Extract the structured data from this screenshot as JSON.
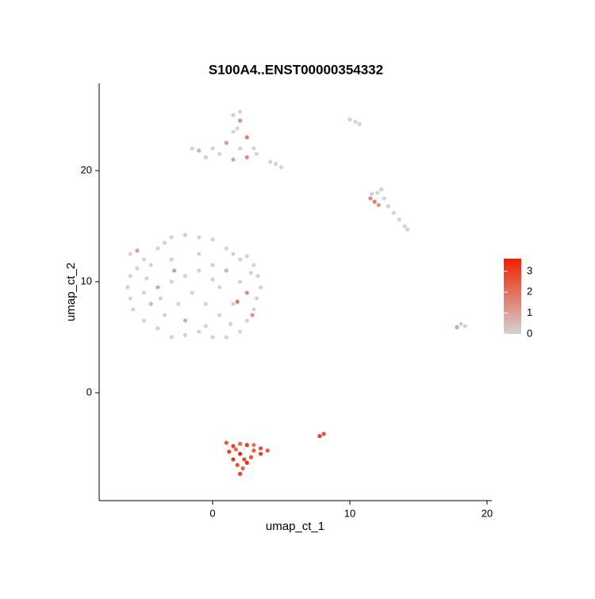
{
  "chart_data": {
    "type": "scatter",
    "title": "S100A4..ENST00000354332",
    "x_label": "umap_ct_1",
    "y_label": "umap_ct_2",
    "xlim": [
      -8.27,
      20.35
    ],
    "ylim": [
      -9.71,
      27.86
    ],
    "xticks": [
      0,
      10,
      20
    ],
    "yticks": [
      0,
      10,
      20
    ],
    "color_low": "#d3d3d3",
    "color_high": "#ee2200",
    "colorbar_lim": [
      0,
      3.6
    ],
    "colorbar_ticks": [
      0,
      1,
      2,
      3
    ],
    "x": [
      -6,
      -5.5,
      -5,
      -4.5,
      -4,
      -3.5,
      -3,
      -2,
      -1,
      0,
      1,
      1.5,
      2,
      2.5,
      3,
      3.3,
      3.5,
      3.2,
      3,
      2.5,
      2,
      1,
      0,
      -1,
      -2,
      -3,
      -4,
      -5,
      -5.8,
      -6,
      -6.2,
      -6,
      -5.5,
      -5,
      -4,
      -3,
      -2,
      -1,
      0,
      1,
      2,
      2.5,
      1.5,
      0.5,
      -0.5,
      -1.5,
      -2.5,
      -3.5,
      -4.5,
      -3,
      -1,
      0.5,
      -2,
      1.8,
      -0.5,
      2.8,
      -4.8,
      -3.8,
      0,
      1.3,
      -2.8,
      2.9,
      -1.5,
      -1,
      0,
      1,
      1.5,
      2,
      1.5,
      2,
      2.5,
      3,
      2.5,
      1.5,
      0.5,
      2,
      3.2,
      1.8,
      -0.5,
      4.2,
      4.6,
      5,
      10,
      10.4,
      10.7,
      11.5,
      11.8,
      12,
      12.3,
      12.5,
      12.8,
      13.2,
      13.6,
      14,
      14.2,
      11.6,
      12.1,
      17.8,
      18.1,
      18.4,
      1,
      1.5,
      2,
      2.5,
      3,
      3.5,
      4,
      3.5,
      2.8,
      2.5,
      2.2,
      2,
      1.8,
      1.5,
      1.2,
      2,
      3,
      1.7,
      2.3,
      7.8,
      8.1
    ],
    "y": [
      12.5,
      12.8,
      12,
      11.5,
      13,
      13.5,
      14,
      14.2,
      14,
      13.8,
      13,
      12.5,
      12,
      12.3,
      11.5,
      10.5,
      9.5,
      8.5,
      7.5,
      6.5,
      5.5,
      5,
      5,
      5.5,
      5.2,
      5,
      5.8,
      6.5,
      7.5,
      8.5,
      9.5,
      10.5,
      11.2,
      9,
      9.5,
      10,
      10.5,
      11,
      11.5,
      11,
      10,
      9,
      8,
      7,
      8,
      9,
      8,
      7,
      8,
      12,
      12.5,
      9.5,
      6.5,
      8.2,
      6,
      10.8,
      10.3,
      8.5,
      10.2,
      6.2,
      11,
      7,
      22,
      21.8,
      22,
      22.5,
      23.5,
      24.5,
      25,
      25.3,
      23,
      22,
      21.2,
      21,
      21.5,
      22,
      21.5,
      23.8,
      21.2,
      20.8,
      20.6,
      20.3,
      24.6,
      24.4,
      24.2,
      17.5,
      17.2,
      18,
      18.3,
      17.5,
      16.8,
      16.2,
      15.6,
      15,
      14.7,
      17.9,
      16.9,
      5.9,
      6.2,
      6,
      -4.5,
      -4.8,
      -4.6,
      -4.7,
      -4.7,
      -5,
      -5.2,
      -5.5,
      -5.8,
      -6.3,
      -6.8,
      -7.3,
      -6.5,
      -6,
      -5.3,
      -5.5,
      -5.2,
      -5.1,
      -6,
      -3.9,
      -3.7
    ],
    "values": [
      0,
      1.2,
      0,
      0,
      0,
      0,
      0,
      0,
      0,
      0,
      0,
      0,
      0,
      0,
      0,
      0,
      0,
      0,
      0,
      0,
      0,
      0,
      0,
      0,
      0,
      0,
      0,
      0,
      0,
      0,
      0,
      0,
      0,
      0,
      1,
      0,
      0,
      0,
      0,
      0.8,
      0,
      1.5,
      0,
      0,
      0,
      0,
      0,
      0,
      0.6,
      0,
      0,
      0,
      0.9,
      1.8,
      0,
      0,
      0,
      0,
      0,
      0,
      1.1,
      1.3,
      0,
      0.8,
      0,
      1.2,
      0,
      1.5,
      0,
      0,
      1.8,
      0,
      1.4,
      1,
      0,
      0,
      0,
      0,
      0,
      0,
      0,
      0,
      0,
      0,
      0,
      1.5,
      1.8,
      0,
      0,
      0,
      0,
      0,
      0,
      0,
      0,
      0,
      1.2,
      1,
      0,
      0,
      2.5,
      3,
      2.2,
      3.2,
      2,
      2.8,
      2.5,
      3,
      2.6,
      3.4,
      2.3,
      3,
      2.7,
      3.3,
      2.9,
      3.6,
      2.4,
      2.1,
      2.8,
      3,
      2.6
    ]
  }
}
